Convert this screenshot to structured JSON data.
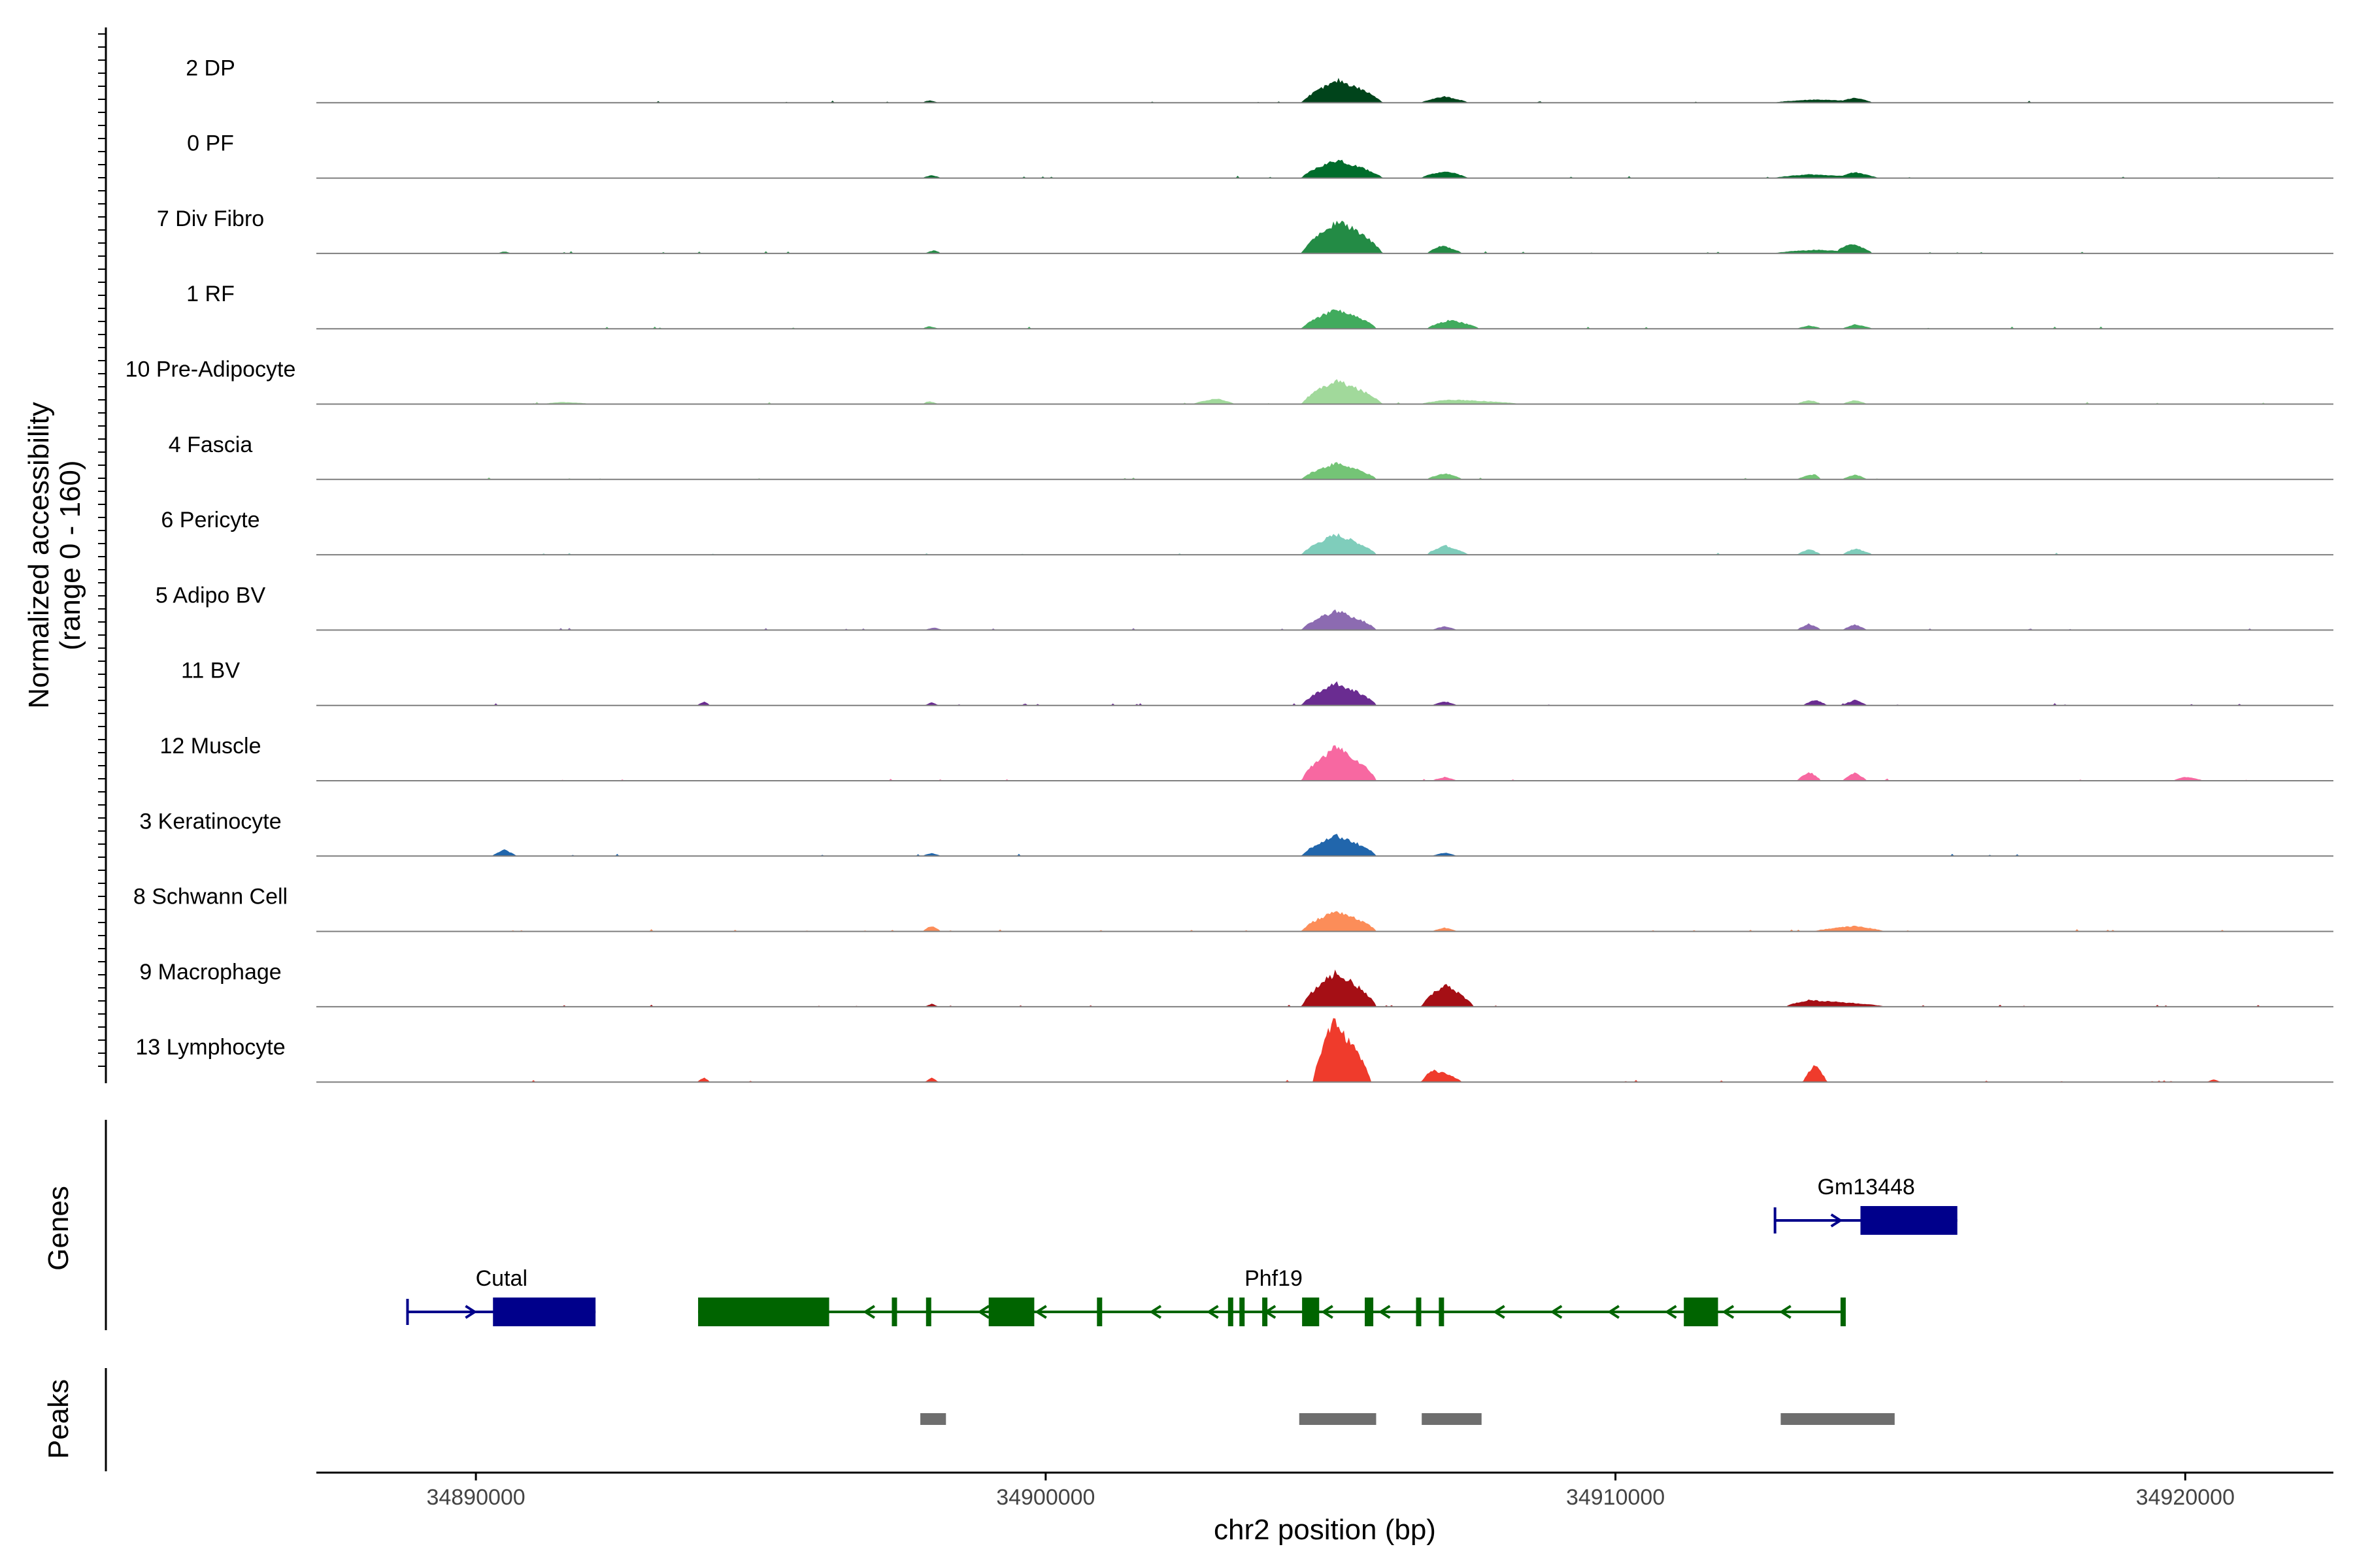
{
  "chart_data": {
    "type": "area",
    "xlabel": "chr2 position (bp)",
    "ylabel_line1": "Normalized accessibility",
    "ylabel_line2": "(range 0 - 160)",
    "yrange": [
      0,
      160
    ],
    "xlim": [
      34887200,
      34922600
    ],
    "x_ticks": [
      34890000,
      34900000,
      34910000,
      34920000
    ],
    "x_tick_labels": [
      "34890000",
      "34900000",
      "34910000",
      "34920000"
    ],
    "tracks": [
      {
        "name": "2 DP",
        "color": "#00441b",
        "peaks": [
          [
            34905150,
            34904500,
            34905900,
            52
          ],
          [
            34907000,
            34906600,
            34907400,
            14
          ],
          [
            34913500,
            34912800,
            34914500,
            7
          ],
          [
            34914200,
            34914000,
            34914500,
            8
          ],
          [
            34897950,
            34897850,
            34898100,
            5
          ]
        ]
      },
      {
        "name": "0 PF",
        "color": "#006d2c",
        "peaks": [
          [
            34905100,
            34904500,
            34905900,
            42
          ],
          [
            34907000,
            34906600,
            34907400,
            16
          ],
          [
            34913400,
            34912800,
            34914500,
            8
          ],
          [
            34914200,
            34914000,
            34914600,
            10
          ],
          [
            34898000,
            34897850,
            34898150,
            6
          ]
        ]
      },
      {
        "name": "7 Div Fibro",
        "color": "#238b45",
        "peaks": [
          [
            34905150,
            34904500,
            34905900,
            75
          ],
          [
            34906950,
            34906700,
            34907300,
            18
          ],
          [
            34913500,
            34912800,
            34914500,
            8
          ],
          [
            34914150,
            34913900,
            34914500,
            18
          ],
          [
            34898050,
            34897900,
            34898150,
            7
          ],
          [
            34890500,
            34890400,
            34890600,
            4
          ]
        ]
      },
      {
        "name": "1 RF",
        "color": "#41ab5d",
        "peaks": [
          [
            34905100,
            34904500,
            34905800,
            45
          ],
          [
            34907100,
            34906700,
            34907600,
            20
          ],
          [
            34913400,
            34913200,
            34913600,
            7
          ],
          [
            34914200,
            34914000,
            34914500,
            9
          ],
          [
            34897950,
            34897850,
            34898100,
            5
          ]
        ]
      },
      {
        "name": "10 Pre-Adipocyte",
        "color": "#a1d99b",
        "peaks": [
          [
            34905100,
            34904500,
            34905900,
            55
          ],
          [
            34907100,
            34906600,
            34908300,
            10
          ],
          [
            34913400,
            34913200,
            34913600,
            9
          ],
          [
            34914200,
            34914000,
            34914400,
            9
          ],
          [
            34903000,
            34902600,
            34903300,
            12
          ],
          [
            34897950,
            34897850,
            34898100,
            6
          ],
          [
            34891500,
            34891200,
            34892000,
            4
          ]
        ]
      },
      {
        "name": "4 Fascia",
        "color": "#74c476",
        "peaks": [
          [
            34905100,
            34904500,
            34905800,
            38
          ],
          [
            34907000,
            34906700,
            34907300,
            14
          ],
          [
            34913500,
            34913200,
            34913600,
            12
          ],
          [
            34914200,
            34914000,
            34914400,
            11
          ]
        ]
      },
      {
        "name": "6 Pericyte",
        "color": "#7fcdbb",
        "peaks": [
          [
            34905100,
            34904500,
            34905800,
            48
          ],
          [
            34907000,
            34906700,
            34907400,
            22
          ],
          [
            34913400,
            34913200,
            34913600,
            12
          ],
          [
            34914200,
            34914000,
            34914500,
            14
          ]
        ]
      },
      {
        "name": "5 Adipo BV",
        "color": "#8c6bb1",
        "peaks": [
          [
            34905100,
            34904500,
            34905800,
            45
          ],
          [
            34907000,
            34906800,
            34907200,
            8
          ],
          [
            34913400,
            34913200,
            34913600,
            14
          ],
          [
            34914200,
            34914000,
            34914400,
            12
          ],
          [
            34898050,
            34897900,
            34898150,
            5
          ]
        ]
      },
      {
        "name": "11 BV",
        "color": "#6a2c91",
        "peaks": [
          [
            34905100,
            34904500,
            34905800,
            52
          ],
          [
            34907000,
            34906800,
            34907200,
            9
          ],
          [
            34913500,
            34913300,
            34913700,
            12
          ],
          [
            34914200,
            34914000,
            34914400,
            12
          ],
          [
            34894000,
            34893900,
            34894100,
            8
          ],
          [
            34898000,
            34897900,
            34898100,
            7
          ]
        ]
      },
      {
        "name": "12 Muscle",
        "color": "#f768a1",
        "peaks": [
          [
            34905100,
            34904500,
            34905800,
            80
          ],
          [
            34907000,
            34906800,
            34907200,
            8
          ],
          [
            34913400,
            34913200,
            34913600,
            20
          ],
          [
            34914200,
            34914000,
            34914400,
            18
          ],
          [
            34920000,
            34919800,
            34920300,
            8
          ]
        ]
      },
      {
        "name": "3 Keratinocyte",
        "color": "#2166ac",
        "peaks": [
          [
            34905100,
            34904500,
            34905800,
            48
          ],
          [
            34890500,
            34890300,
            34890700,
            14
          ],
          [
            34898000,
            34897850,
            34898150,
            6
          ],
          [
            34907000,
            34906800,
            34907200,
            7
          ]
        ]
      },
      {
        "name": "8 Schwann Cell",
        "color": "#fc8d59",
        "peaks": [
          [
            34905100,
            34904500,
            34905800,
            48
          ],
          [
            34898000,
            34897850,
            34898150,
            12
          ],
          [
            34907000,
            34906800,
            34907200,
            8
          ],
          [
            34914200,
            34913500,
            34914700,
            12
          ]
        ]
      },
      {
        "name": "9 Macrophage",
        "color": "#a50f15",
        "peaks": [
          [
            34905100,
            34904500,
            34905800,
            80
          ],
          [
            34907000,
            34906600,
            34907500,
            50
          ],
          [
            34913400,
            34913000,
            34914700,
            15
          ],
          [
            34898000,
            34897900,
            34898100,
            6
          ]
        ]
      },
      {
        "name": "13 Lymphocyte",
        "color": "#ef3b2c",
        "peaks": [
          [
            34905050,
            34904700,
            34905700,
            140
          ],
          [
            34906800,
            34906600,
            34907300,
            28
          ],
          [
            34913500,
            34913300,
            34913700,
            38
          ],
          [
            34894000,
            34893900,
            34894100,
            10
          ],
          [
            34898000,
            34897900,
            34898100,
            10
          ],
          [
            34920500,
            34920400,
            34920600,
            6
          ]
        ]
      }
    ],
    "genes": [
      {
        "name": "Gm13448",
        "strand": "+",
        "color": "#00008b",
        "start": 34912800,
        "end": 34916000,
        "exons": [
          [
            34914300,
            34916000
          ]
        ],
        "row": 1
      },
      {
        "name": "Cutal",
        "strand": "+",
        "color": "#00008b",
        "start": 34888800,
        "end": 34892100,
        "exons": [
          [
            34890300,
            34892100
          ]
        ],
        "row": 2
      },
      {
        "name": "Phf19",
        "strand": "-",
        "color": "#006400",
        "start": 34893900,
        "end": 34914000,
        "exons": [
          [
            34893900,
            34896200
          ],
          [
            34897300,
            34897350
          ],
          [
            34897900,
            34897950
          ],
          [
            34899000,
            34899800
          ],
          [
            34900900,
            34900950
          ],
          [
            34903200,
            34903250
          ],
          [
            34903400,
            34903450
          ],
          [
            34903800,
            34903850
          ],
          [
            34904500,
            34904800
          ],
          [
            34905600,
            34905750
          ],
          [
            34906500,
            34906550
          ],
          [
            34906900,
            34906950
          ],
          [
            34911200,
            34911800
          ],
          [
            34913950,
            34914000
          ]
        ],
        "row": 2
      }
    ],
    "peak_regions": [
      [
        34897800,
        34898250
      ],
      [
        34904450,
        34905800
      ],
      [
        34906600,
        34907650
      ],
      [
        34912900,
        34914900
      ]
    ],
    "panel_labels": {
      "genes": "Genes",
      "peaks": "Peaks"
    }
  }
}
